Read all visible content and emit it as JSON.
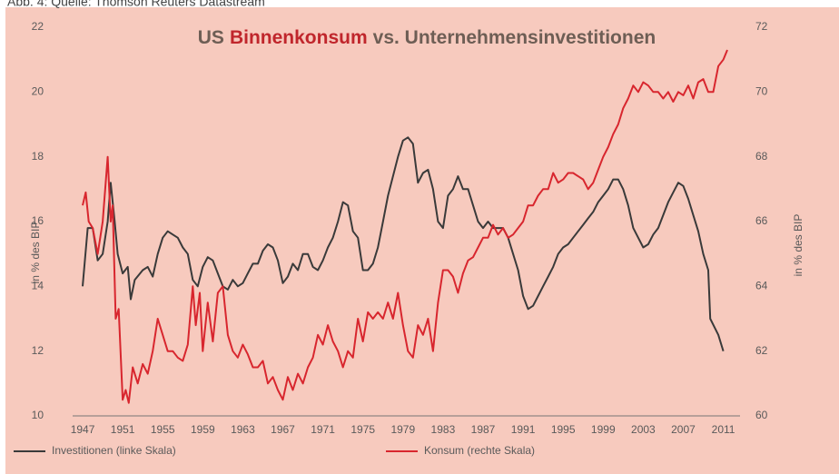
{
  "chart_data": {
    "type": "line",
    "source": "Abb. 4: Quelle: Thomson Reuters Datastream",
    "title_parts": [
      {
        "text": "US",
        "color": "#6e5e55"
      },
      {
        "text": "Binnenkonsum",
        "color": "#c0262c"
      },
      {
        "text": "vs. Unternehmensinvestitionen",
        "color": "#6e5e55"
      }
    ],
    "ylabel": "in % des BIP",
    "y2label": "in % des BIP",
    "xlim": [
      1946.27,
      2012.4
    ],
    "xticks": [
      1947,
      1951,
      1955,
      1959,
      1963,
      1967,
      1971,
      1975,
      1979,
      1983,
      1987,
      1991,
      1995,
      1999,
      2003,
      2007,
      2011
    ],
    "ylim": [
      10,
      22
    ],
    "yticks": [
      10,
      12,
      14,
      16,
      18,
      20,
      22
    ],
    "y2lim": [
      60,
      72
    ],
    "y2ticks": [
      60,
      62,
      64,
      66,
      68,
      70,
      72
    ],
    "grid": false,
    "legend": "bottom",
    "series": [
      {
        "name": "Investitionen (linke Skala)",
        "color": "#3a3a3a",
        "axis": "y",
        "x": [
          1947,
          1947.5,
          1948,
          1948.5,
          1949,
          1949.5,
          1949.8,
          1950.2,
          1950.5,
          1951,
          1951.5,
          1951.8,
          1952.2,
          1953,
          1953.5,
          1954,
          1954.5,
          1955,
          1955.5,
          1956,
          1956.5,
          1957,
          1957.5,
          1958,
          1958.5,
          1959,
          1959.5,
          1960,
          1960.5,
          1961,
          1961.5,
          1962,
          1962.5,
          1963,
          1963.5,
          1964,
          1964.5,
          1965,
          1965.5,
          1966,
          1966.5,
          1967,
          1967.5,
          1968,
          1968.5,
          1969,
          1969.5,
          1970,
          1970.5,
          1971,
          1971.5,
          1972,
          1972.5,
          1973,
          1973.5,
          1974,
          1974.5,
          1975,
          1975.5,
          1976,
          1976.5,
          1977,
          1977.5,
          1978,
          1978.5,
          1979,
          1979.5,
          1980,
          1980.5,
          1981,
          1981.5,
          1982,
          1982.5,
          1983,
          1983.5,
          1984,
          1984.5,
          1985,
          1985.5,
          1986,
          1986.5,
          1987,
          1987.5,
          1988,
          1988.5,
          1989,
          1989.5,
          1990,
          1990.5,
          1991,
          1991.5,
          1992,
          1992.5,
          1993,
          1993.5,
          1994,
          1994.5,
          1995,
          1995.5,
          1996,
          1996.5,
          1997,
          1997.5,
          1998,
          1998.5,
          1999,
          1999.5,
          2000,
          2000.5,
          2001,
          2001.5,
          2002,
          2002.5,
          2003,
          2003.5,
          2004,
          2004.5,
          2005,
          2005.5,
          2006,
          2006.5,
          2007,
          2007.5,
          2008,
          2008.5,
          2009,
          2009.5,
          2009.7,
          2010.5,
          2011
        ],
        "values": [
          14.0,
          15.8,
          15.8,
          14.8,
          15.0,
          16.0,
          17.2,
          16.0,
          15.0,
          14.4,
          14.6,
          13.6,
          14.2,
          14.5,
          14.6,
          14.3,
          15.0,
          15.5,
          15.7,
          15.6,
          15.5,
          15.2,
          15.0,
          14.2,
          14.0,
          14.6,
          14.9,
          14.8,
          14.4,
          14.0,
          13.9,
          14.2,
          14.0,
          14.1,
          14.4,
          14.7,
          14.7,
          15.1,
          15.3,
          15.2,
          14.8,
          14.1,
          14.3,
          14.7,
          14.5,
          15.0,
          15.0,
          14.6,
          14.5,
          14.8,
          15.2,
          15.5,
          16.0,
          16.6,
          16.5,
          15.7,
          15.5,
          14.5,
          14.5,
          14.7,
          15.2,
          16.0,
          16.8,
          17.4,
          18.0,
          18.5,
          18.6,
          18.4,
          17.2,
          17.5,
          17.6,
          17.0,
          16.0,
          15.8,
          16.8,
          17.0,
          17.4,
          17.0,
          17.0,
          16.5,
          16.0,
          15.8,
          16.0,
          15.8,
          15.8,
          15.8,
          15.5,
          15.0,
          14.5,
          13.7,
          13.3,
          13.4,
          13.7,
          14.0,
          14.3,
          14.6,
          15.0,
          15.2,
          15.3,
          15.5,
          15.7,
          15.9,
          16.1,
          16.3,
          16.6,
          16.8,
          17.0,
          17.3,
          17.3,
          17.0,
          16.5,
          15.8,
          15.5,
          15.2,
          15.3,
          15.6,
          15.8,
          16.2,
          16.6,
          16.9,
          17.2,
          17.1,
          16.7,
          16.2,
          15.7,
          15.0,
          14.5,
          13.0,
          12.5,
          12.0
        ]
      },
      {
        "name": "Konsum (rechte Skala)",
        "color": "#d8262e",
        "axis": "y2",
        "x": [
          1947,
          1947.3,
          1947.6,
          1948,
          1948.5,
          1949,
          1949.5,
          1949.8,
          1950,
          1950.3,
          1950.6,
          1951,
          1951.3,
          1951.6,
          1952,
          1952.5,
          1953,
          1953.5,
          1954,
          1954.5,
          1955,
          1955.5,
          1956,
          1956.5,
          1957,
          1957.5,
          1958,
          1958.3,
          1958.7,
          1959,
          1959.5,
          1960,
          1960.5,
          1961,
          1961.5,
          1962,
          1962.5,
          1963,
          1963.5,
          1964,
          1964.5,
          1965,
          1965.5,
          1966,
          1966.5,
          1967,
          1967.5,
          1968,
          1968.5,
          1969,
          1969.5,
          1970,
          1970.5,
          1971,
          1971.5,
          1972,
          1972.5,
          1973,
          1973.5,
          1974,
          1974.5,
          1975,
          1975.5,
          1976,
          1976.5,
          1977,
          1977.5,
          1978,
          1978.5,
          1979,
          1979.5,
          1980,
          1980.5,
          1981,
          1981.5,
          1982,
          1982.5,
          1983,
          1983.5,
          1984,
          1984.5,
          1985,
          1985.5,
          1986,
          1986.5,
          1987,
          1987.5,
          1988,
          1988.5,
          1989,
          1989.5,
          1990,
          1990.5,
          1991,
          1991.5,
          1992,
          1992.5,
          1993,
          1993.5,
          1994,
          1994.5,
          1995,
          1995.5,
          1996,
          1996.5,
          1997,
          1997.5,
          1998,
          1998.5,
          1999,
          1999.5,
          2000,
          2000.5,
          2001,
          2001.5,
          2002,
          2002.5,
          2003,
          2003.5,
          2004,
          2004.5,
          2005,
          2005.5,
          2006,
          2006.5,
          2007,
          2007.5,
          2008,
          2008.5,
          2009,
          2009.5,
          2010,
          2010.5,
          2011,
          2011.4
        ],
        "values": [
          66.5,
          66.9,
          66.0,
          65.8,
          65.0,
          66.0,
          68.0,
          66.0,
          66.5,
          63.0,
          63.3,
          60.5,
          60.8,
          60.4,
          61.5,
          61.0,
          61.6,
          61.3,
          62.0,
          63.0,
          62.5,
          62.0,
          62.0,
          61.8,
          61.7,
          62.2,
          64.0,
          62.8,
          63.8,
          62.0,
          63.5,
          62.3,
          63.8,
          64.0,
          62.5,
          62.0,
          61.8,
          62.2,
          61.9,
          61.5,
          61.5,
          61.7,
          61.0,
          61.2,
          60.8,
          60.5,
          61.2,
          60.8,
          61.3,
          61.0,
          61.5,
          61.8,
          62.5,
          62.2,
          62.8,
          62.3,
          62.0,
          61.5,
          62.0,
          61.8,
          63.0,
          62.3,
          63.2,
          63.0,
          63.2,
          63.0,
          63.5,
          63.0,
          63.8,
          62.8,
          62.0,
          61.8,
          62.8,
          62.5,
          63.0,
          62.0,
          63.5,
          64.5,
          64.5,
          64.3,
          63.8,
          64.4,
          64.8,
          64.9,
          65.2,
          65.5,
          65.5,
          65.9,
          65.6,
          65.8,
          65.5,
          65.6,
          65.8,
          66.0,
          66.5,
          66.5,
          66.8,
          67.0,
          67.0,
          67.5,
          67.2,
          67.3,
          67.5,
          67.5,
          67.4,
          67.3,
          67.0,
          67.2,
          67.6,
          68.0,
          68.3,
          68.7,
          69.0,
          69.5,
          69.8,
          70.2,
          70.0,
          70.3,
          70.2,
          70.0,
          70.0,
          69.8,
          70.0,
          69.7,
          70.0,
          69.9,
          70.2,
          69.8,
          70.3,
          70.4,
          70.0,
          70.0,
          70.8,
          71.0,
          71.3
        ]
      }
    ]
  }
}
